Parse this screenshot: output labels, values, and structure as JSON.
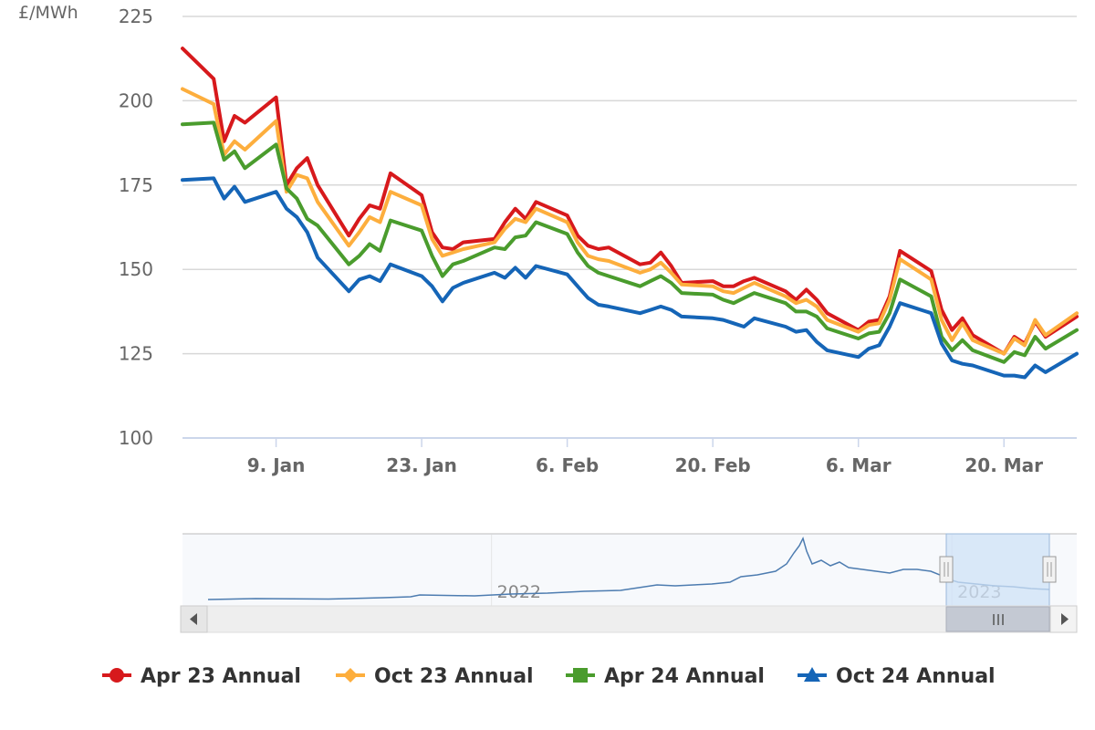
{
  "chart_data": {
    "type": "line",
    "title": "",
    "xlabel": "",
    "ylabel": "£/MWh",
    "ylim": [
      100,
      225
    ],
    "yticks": [
      100,
      125,
      150,
      175,
      200,
      225
    ],
    "xlim": [
      "2022-12-31",
      "2023-03-27"
    ],
    "xticks": [
      {
        "date": "2023-01-09",
        "label": "9. Jan"
      },
      {
        "date": "2023-01-23",
        "label": "23. Jan"
      },
      {
        "date": "2023-02-06",
        "label": "6. Feb"
      },
      {
        "date": "2023-02-20",
        "label": "20. Feb"
      },
      {
        "date": "2023-03-06",
        "label": "6. Mar"
      },
      {
        "date": "2023-03-20",
        "label": "20. Mar"
      }
    ],
    "grid": true,
    "legend_position": "bottom",
    "x": [
      "2022-12-31",
      "2023-01-03",
      "2023-01-04",
      "2023-01-05",
      "2023-01-06",
      "2023-01-09",
      "2023-01-10",
      "2023-01-11",
      "2023-01-12",
      "2023-01-13",
      "2023-01-16",
      "2023-01-17",
      "2023-01-18",
      "2023-01-19",
      "2023-01-20",
      "2023-01-23",
      "2023-01-24",
      "2023-01-25",
      "2023-01-26",
      "2023-01-27",
      "2023-01-30",
      "2023-01-31",
      "2023-02-01",
      "2023-02-02",
      "2023-02-03",
      "2023-02-06",
      "2023-02-07",
      "2023-02-08",
      "2023-02-09",
      "2023-02-10",
      "2023-02-13",
      "2023-02-14",
      "2023-02-15",
      "2023-02-16",
      "2023-02-17",
      "2023-02-20",
      "2023-02-21",
      "2023-02-22",
      "2023-02-23",
      "2023-02-24",
      "2023-02-27",
      "2023-02-28",
      "2023-03-01",
      "2023-03-02",
      "2023-03-03",
      "2023-03-06",
      "2023-03-07",
      "2023-03-08",
      "2023-03-09",
      "2023-03-10",
      "2023-03-13",
      "2023-03-14",
      "2023-03-15",
      "2023-03-16",
      "2023-03-17",
      "2023-03-20",
      "2023-03-21",
      "2023-03-22",
      "2023-03-23",
      "2023-03-24",
      "2023-03-27"
    ],
    "series": [
      {
        "name": "Apr 23 Annual",
        "color": "#d7191c",
        "marker": "circle",
        "values": [
          215.5,
          206.5,
          188,
          195.5,
          193.5,
          201,
          175,
          180,
          183,
          175,
          160,
          165,
          169,
          168,
          178.5,
          172,
          161,
          156.5,
          156,
          158,
          159,
          164,
          168,
          165,
          170,
          166,
          160,
          157,
          156,
          156.5,
          151.5,
          152,
          155,
          151,
          146,
          146.5,
          145,
          145,
          146.5,
          147.5,
          143.5,
          141,
          144,
          141,
          137,
          132,
          134.5,
          135,
          142,
          155.5,
          149.5,
          138,
          132,
          135.5,
          130.5,
          125,
          130,
          128,
          134.5,
          130,
          136
        ]
      },
      {
        "name": "Oct 23 Annual",
        "color": "#fdae3d",
        "marker": "diamond",
        "values": [
          203.5,
          199,
          184,
          188,
          185.5,
          194,
          173,
          178,
          177,
          170,
          157,
          161,
          165.5,
          164,
          173,
          169,
          159,
          154,
          155,
          156,
          158,
          162,
          165,
          164,
          168,
          164,
          158,
          154,
          153,
          152.5,
          149,
          150,
          152,
          149,
          145.5,
          145,
          143.5,
          143,
          144.5,
          146,
          142,
          140,
          141,
          139,
          135,
          131.5,
          133.5,
          134,
          141,
          153,
          147,
          135,
          129,
          134,
          129,
          125,
          129.5,
          127.5,
          135,
          130.5,
          137
        ]
      },
      {
        "name": "Apr 24 Annual",
        "color": "#4a9c2d",
        "marker": "square",
        "values": [
          193,
          193.5,
          182.5,
          185,
          180,
          187,
          174,
          171,
          165,
          163,
          151.5,
          154,
          157.5,
          155.5,
          164.5,
          161.5,
          154,
          148,
          151.5,
          152.5,
          156.5,
          156,
          159.5,
          160,
          164,
          160.5,
          155,
          151,
          149,
          148,
          145,
          146.5,
          148,
          146,
          143,
          142.5,
          141,
          140,
          141.5,
          143,
          140,
          137.5,
          137.5,
          136,
          132.5,
          129.5,
          131,
          131.5,
          137,
          147,
          142,
          130,
          126,
          129,
          126,
          122.5,
          125.5,
          124.5,
          130,
          126.5,
          132
        ]
      },
      {
        "name": "Oct 24 Annual",
        "color": "#1565b7",
        "marker": "triangle",
        "values": [
          176.5,
          177,
          171,
          174.5,
          170,
          173,
          168,
          165.5,
          161,
          153.5,
          143.5,
          147,
          148,
          146.5,
          151.5,
          148,
          145,
          140.5,
          144.5,
          146,
          149,
          147.5,
          150.5,
          147.5,
          151,
          148.5,
          145,
          141.5,
          139.5,
          139,
          137,
          138,
          139,
          138,
          136,
          135.5,
          135,
          134,
          133,
          135.5,
          133,
          131.5,
          132,
          128.5,
          126,
          124,
          126.5,
          127.5,
          133,
          140,
          137,
          128,
          123,
          122,
          121.5,
          118.5,
          118.5,
          118,
          121.5,
          119.5,
          125
        ]
      }
    ]
  },
  "navigator": {
    "year_labels": [
      {
        "label": "2022",
        "date": "2022-01-01"
      },
      {
        "label": "2023",
        "date": "2023-01-01"
      }
    ],
    "selection": {
      "from": "2022-12-31",
      "to": "2023-03-27"
    }
  }
}
